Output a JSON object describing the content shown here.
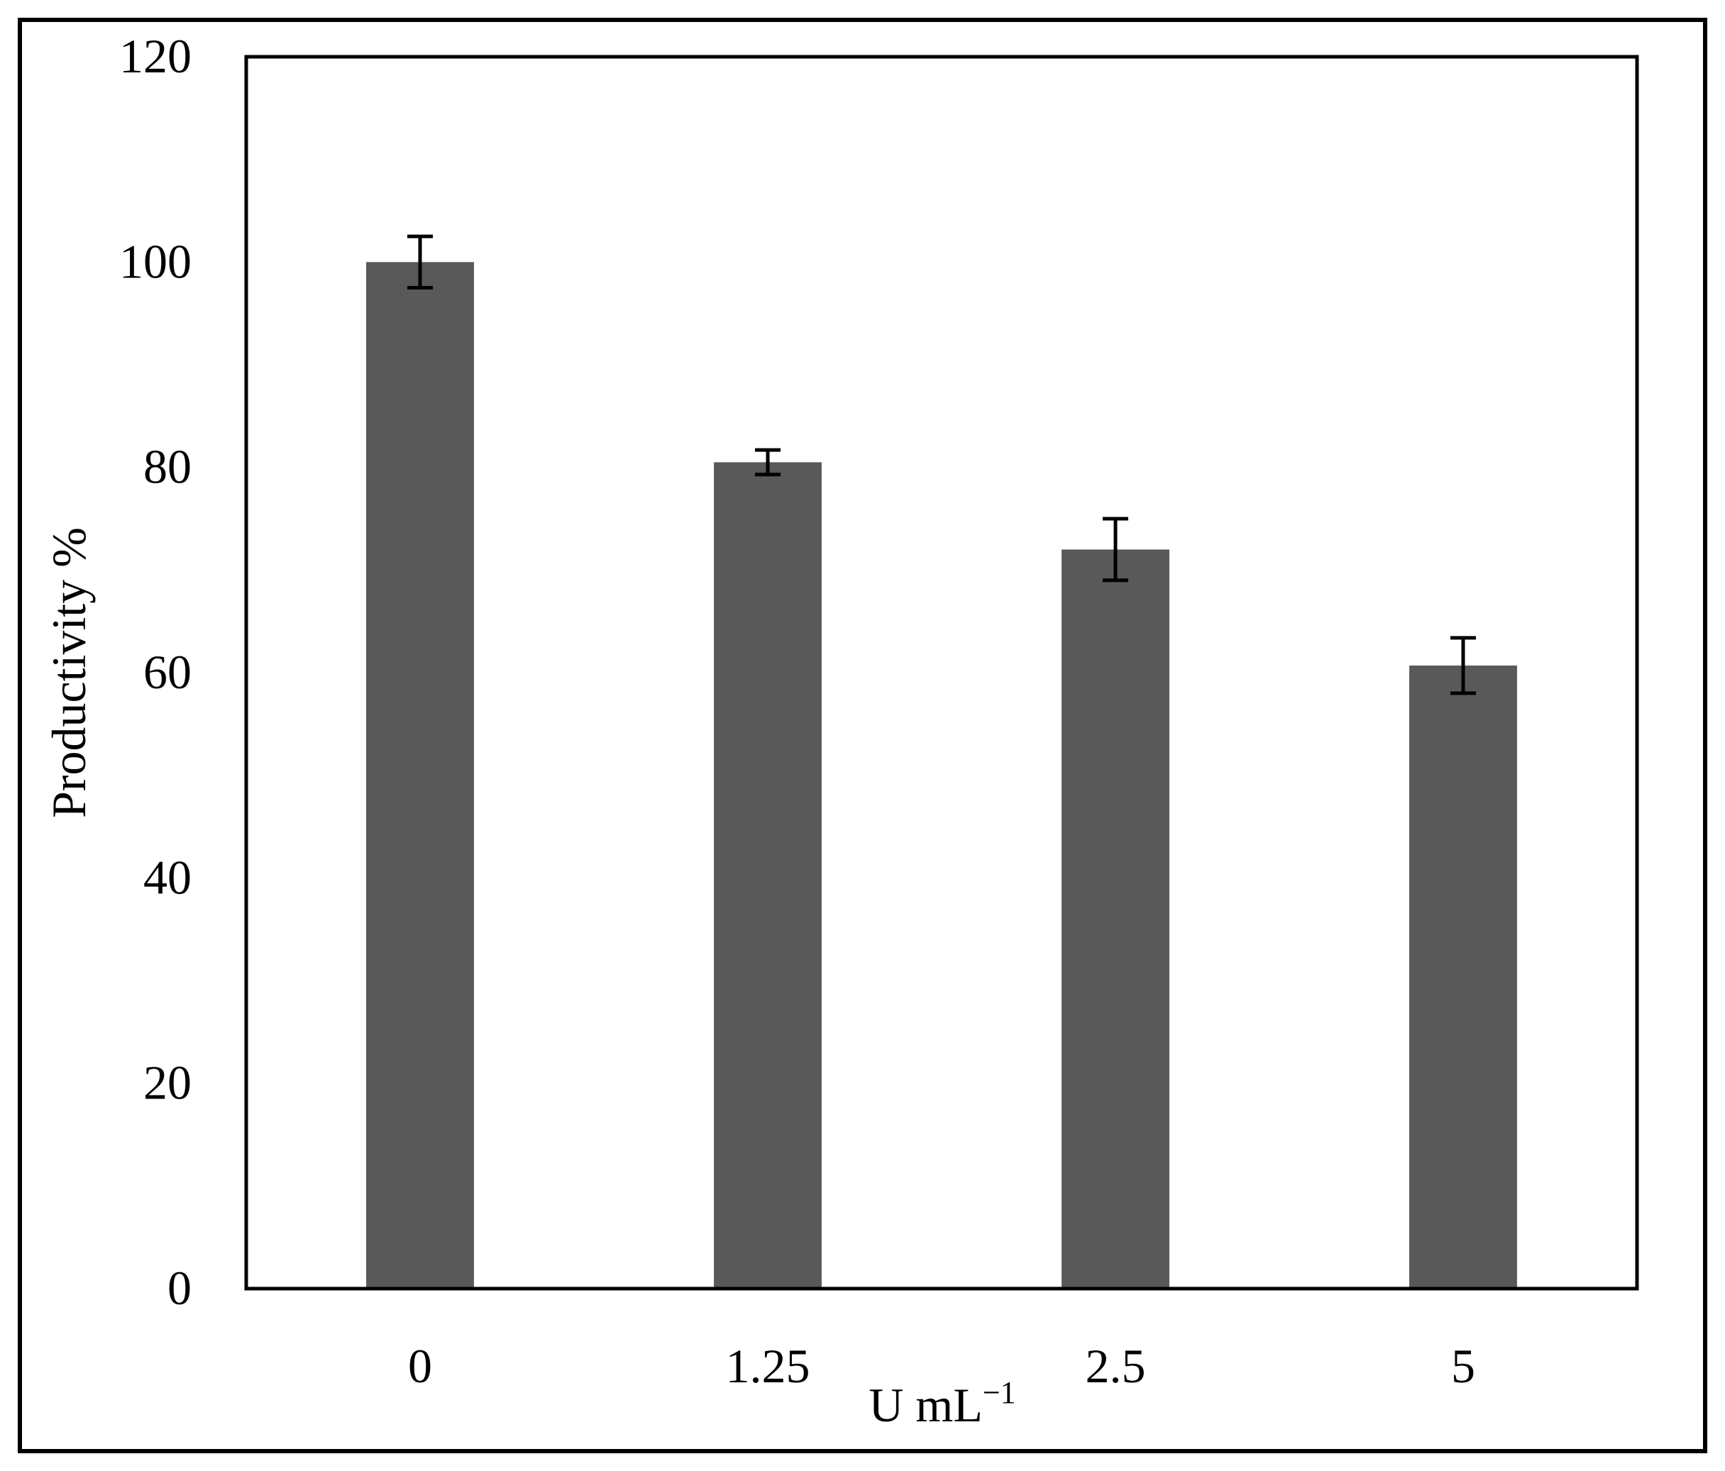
{
  "chart_data": {
    "type": "bar",
    "title": "",
    "categories": [
      "0",
      "1.25",
      "2.5",
      "5"
    ],
    "series": [
      {
        "values": [
          100,
          80.5,
          72,
          60.7
        ],
        "error": [
          2.5,
          1.2,
          3,
          2.7
        ]
      }
    ],
    "xlabel": "U mL",
    "xlabel_superscript": "−1",
    "ylabel": "Productivity  %",
    "ylim": [
      0,
      120
    ],
    "yticks": [
      0,
      20,
      40,
      60,
      80,
      100,
      120
    ],
    "grid": false,
    "legend": "none",
    "colors": {
      "bar": "#595959",
      "axis": "#000000",
      "error_bar": "#000000"
    }
  }
}
